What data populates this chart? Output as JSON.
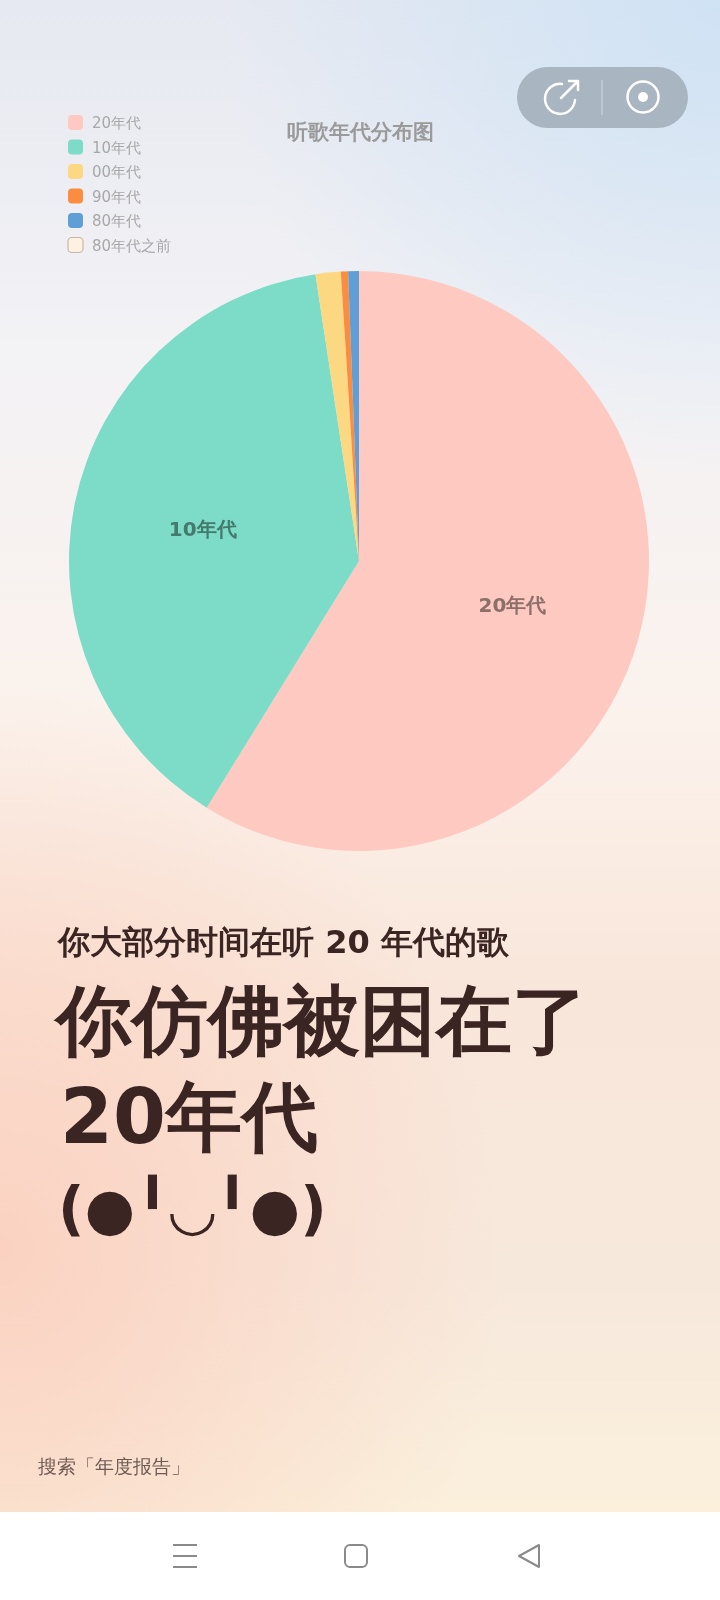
{
  "chart_data": {
    "type": "pie",
    "title": "听歌年代分布图",
    "categories": [
      "20年代",
      "10年代",
      "00年代",
      "90年代",
      "80年代",
      "80年代之前"
    ],
    "values": [
      58.8,
      38.8,
      1.4,
      0.4,
      0.6,
      0
    ],
    "colors": [
      "#fec9c1",
      "#7ddcc8",
      "#fdd883",
      "#fc8c3f",
      "#5f9fd6",
      "#fdf1e0"
    ],
    "legend": "top left",
    "annotations": [
      "你大部分时间在听 20 年代的歌",
      "你仿佛被困在了",
      "20年代",
      "(●╹◡╹●)",
      "搜索「年度报告」"
    ]
  }
}
